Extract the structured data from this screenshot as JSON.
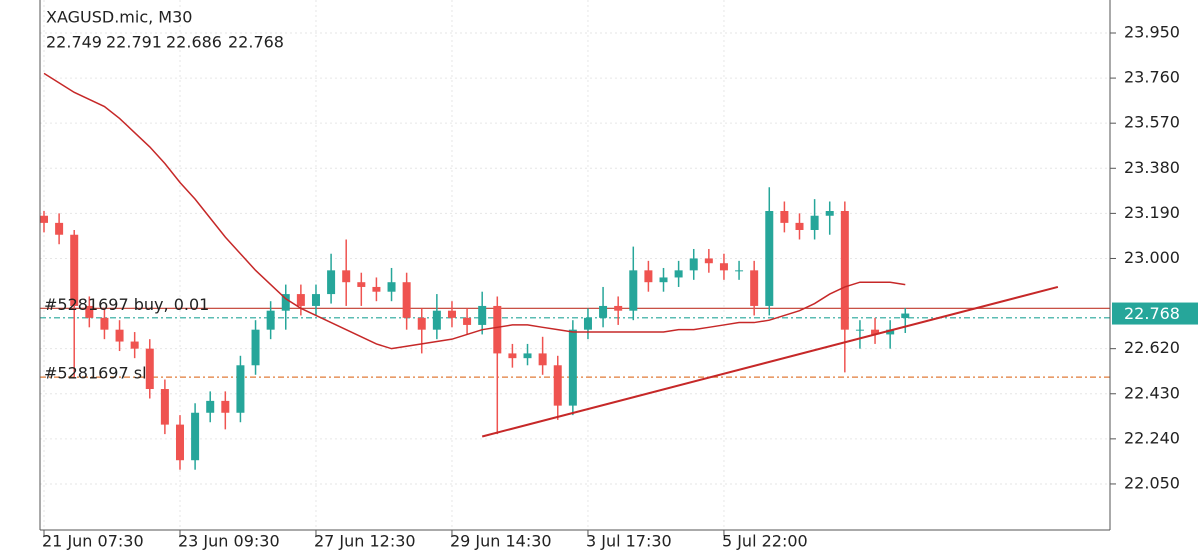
{
  "chart_data": {
    "type": "candlestick",
    "title": "XAGUSD.mic, M30",
    "categories": [
      "21 Jun 07:30",
      null,
      null,
      null,
      null,
      null,
      null,
      null,
      null,
      "23 Jun 09:30",
      null,
      null,
      null,
      null,
      null,
      null,
      null,
      null,
      "27 Jun 12:30",
      null,
      null,
      null,
      null,
      null,
      null,
      null,
      null,
      "29 Jun 14:30",
      null,
      null,
      null,
      null,
      null,
      null,
      null,
      null,
      "3 Jul 17:30",
      null,
      null,
      null,
      null,
      null,
      null,
      null,
      null,
      "5 Jul 22:00",
      null,
      null,
      null,
      null,
      null,
      null,
      null,
      null,
      null,
      null,
      null,
      null
    ],
    "open": [
      23.18,
      23.15,
      23.1,
      22.8,
      22.75,
      22.7,
      22.65,
      22.62,
      22.45,
      22.3,
      22.15,
      22.35,
      22.4,
      22.35,
      22.55,
      22.7,
      22.78,
      22.85,
      22.8,
      22.85,
      22.95,
      22.9,
      22.88,
      22.86,
      22.9,
      22.75,
      22.7,
      22.78,
      22.75,
      22.72,
      22.8,
      22.6,
      22.58,
      22.6,
      22.55,
      22.38,
      22.7,
      22.75,
      22.8,
      22.78,
      22.95,
      22.9,
      22.92,
      22.95,
      23.0,
      22.98,
      22.95,
      22.95,
      22.8,
      23.2,
      23.15,
      23.12,
      23.18,
      23.2,
      22.7,
      22.7,
      22.68,
      22.749
    ],
    "high": [
      23.2,
      23.19,
      23.12,
      22.84,
      22.79,
      22.74,
      22.69,
      22.66,
      22.49,
      22.34,
      22.39,
      22.44,
      22.44,
      22.59,
      22.74,
      22.82,
      22.89,
      22.89,
      22.89,
      23.02,
      23.08,
      22.94,
      22.92,
      22.96,
      22.94,
      22.79,
      22.85,
      22.82,
      22.79,
      22.86,
      22.84,
      22.64,
      22.64,
      22.67,
      22.59,
      22.74,
      22.79,
      22.88,
      22.84,
      23.05,
      22.99,
      22.96,
      22.99,
      23.04,
      23.04,
      23.02,
      22.99,
      22.99,
      23.3,
      23.24,
      23.19,
      23.25,
      23.24,
      23.24,
      22.74,
      22.75,
      22.74,
      22.791
    ],
    "low": [
      23.11,
      23.06,
      22.5,
      22.71,
      22.66,
      22.61,
      22.58,
      22.41,
      22.26,
      22.11,
      22.11,
      22.31,
      22.28,
      22.31,
      22.51,
      22.66,
      22.7,
      22.76,
      22.76,
      22.81,
      22.8,
      22.8,
      22.82,
      22.82,
      22.7,
      22.6,
      22.66,
      22.71,
      22.68,
      22.68,
      22.26,
      22.54,
      22.55,
      22.51,
      22.32,
      22.34,
      22.66,
      22.71,
      22.72,
      22.74,
      22.86,
      22.86,
      22.88,
      22.91,
      22.94,
      22.91,
      22.91,
      22.76,
      22.76,
      23.11,
      23.08,
      23.08,
      23.1,
      22.52,
      22.62,
      22.64,
      22.62,
      22.686
    ],
    "close": [
      23.15,
      23.1,
      22.8,
      22.75,
      22.7,
      22.65,
      22.62,
      22.45,
      22.3,
      22.15,
      22.35,
      22.4,
      22.35,
      22.55,
      22.7,
      22.78,
      22.85,
      22.8,
      22.85,
      22.95,
      22.9,
      22.88,
      22.86,
      22.9,
      22.75,
      22.7,
      22.78,
      22.75,
      22.72,
      22.8,
      22.6,
      22.58,
      22.6,
      22.55,
      22.38,
      22.7,
      22.75,
      22.8,
      22.78,
      22.95,
      22.9,
      22.92,
      22.95,
      23.0,
      22.98,
      22.95,
      22.95,
      22.8,
      23.2,
      23.15,
      23.12,
      23.18,
      23.2,
      22.7,
      22.7,
      22.68,
      22.7,
      22.768
    ],
    "up_color": "#26a69a",
    "down_color": "#ef5350",
    "moving_average": {
      "color": "#c62828",
      "values": [
        23.78,
        23.74,
        23.7,
        23.67,
        23.64,
        23.59,
        23.53,
        23.47,
        23.4,
        23.32,
        23.25,
        23.17,
        23.09,
        23.02,
        22.95,
        22.89,
        22.83,
        22.79,
        22.76,
        22.73,
        22.7,
        22.67,
        22.64,
        22.62,
        22.63,
        22.64,
        22.65,
        22.66,
        22.68,
        22.7,
        22.71,
        22.72,
        22.72,
        22.71,
        22.7,
        22.69,
        22.69,
        22.69,
        22.69,
        22.69,
        22.69,
        22.69,
        22.7,
        22.7,
        22.71,
        22.72,
        22.73,
        22.73,
        22.74,
        22.76,
        22.78,
        22.81,
        22.85,
        22.88,
        22.9,
        22.9,
        22.9,
        22.89
      ]
    },
    "trendline": {
      "color": "#c62828",
      "x": [
        29,
        67.1
      ],
      "values": [
        22.25,
        22.88
      ]
    },
    "levels": [
      {
        "label": "#5281697 buy, 0.01",
        "value": 22.79,
        "color": "#c0392b"
      },
      {
        "label": "#5281697 sl",
        "value": 22.5,
        "color": "#e07b39",
        "dashed": true
      },
      {
        "value": 22.75,
        "color": "#26a69a",
        "dashed": true
      }
    ],
    "ylim": [
      21.856,
      24.089
    ],
    "yticks": [
      {
        "value": 23.95,
        "label": "23.950"
      },
      {
        "value": 23.76,
        "label": "23.760"
      },
      {
        "value": 23.57,
        "label": "23.570"
      },
      {
        "value": 23.38,
        "label": "23.380"
      },
      {
        "value": 23.19,
        "label": "23.190"
      },
      {
        "value": 23.0,
        "label": "23.000"
      },
      {
        "value": 22.62,
        "label": "22.620"
      },
      {
        "value": 22.43,
        "label": "22.430"
      },
      {
        "value": 22.24,
        "label": "22.240"
      },
      {
        "value": 22.05,
        "label": "22.050"
      }
    ],
    "grid": true
  }
}
